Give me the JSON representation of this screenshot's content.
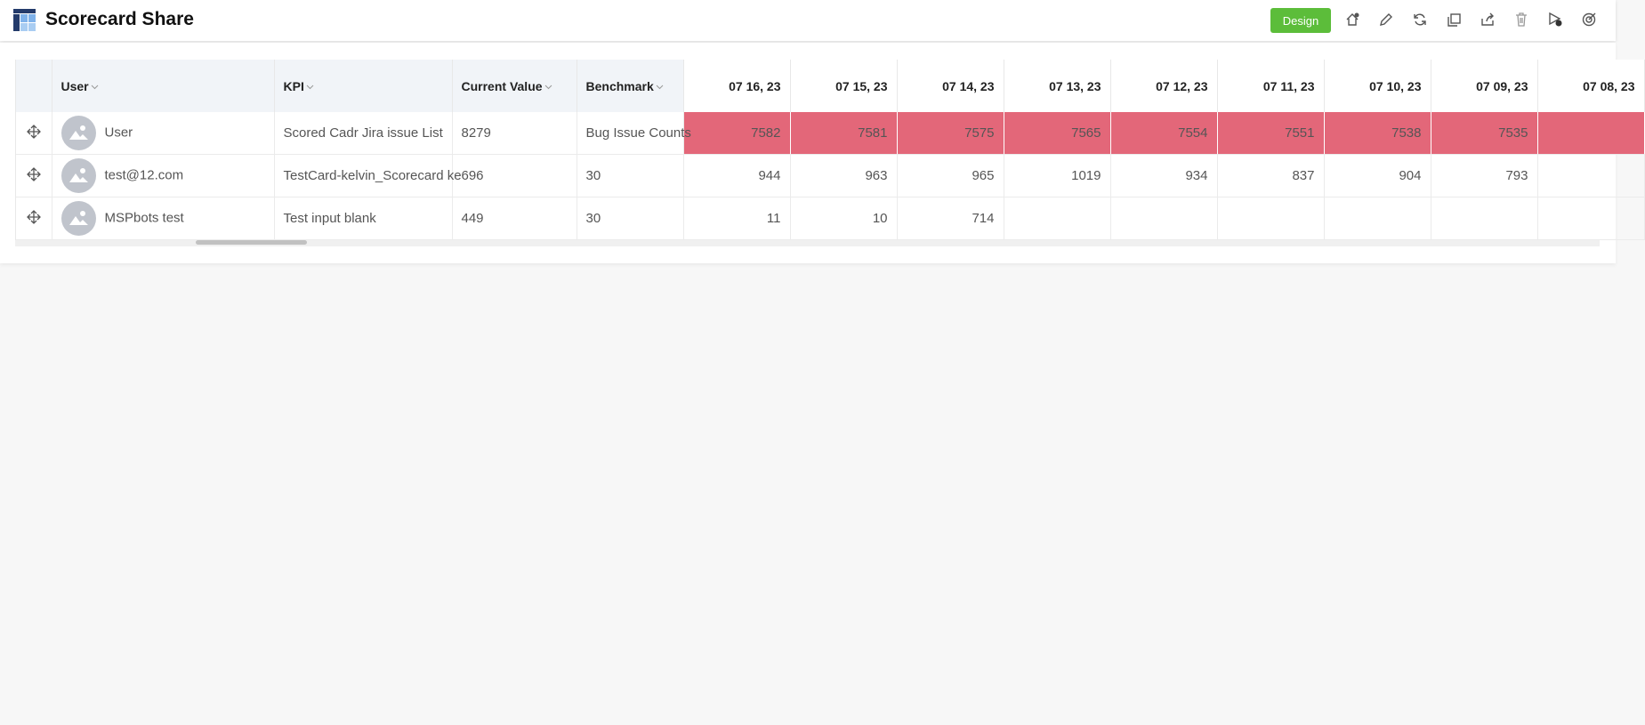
{
  "header": {
    "title": "Scorecard Share",
    "design_button": "Design"
  },
  "table": {
    "columns": [
      "User",
      "KPI",
      "Current Value",
      "Benchmark",
      "07 16, 23",
      "07 15, 23",
      "07 14, 23",
      "07 13, 23",
      "07 12, 23",
      "07 11, 23",
      "07 10, 23",
      "07 09, 23",
      "07 08, 23"
    ],
    "sortable_columns": [
      0,
      1,
      2,
      3
    ],
    "rows": [
      [
        "User",
        "Scored Cadr Jira issue List",
        8279,
        "Bug Issue Counts",
        7582,
        7581,
        7575,
        7565,
        7554,
        7551,
        7538,
        7535,
        null
      ],
      [
        "test@12.com",
        "TestCard-kelvin_Scorecard ke",
        696,
        30,
        944,
        963,
        965,
        1019,
        934,
        837,
        904,
        793,
        null
      ],
      [
        "MSPbots test",
        "Test input blank",
        449,
        30,
        11,
        10,
        714,
        null,
        null,
        null,
        null,
        null,
        null
      ]
    ],
    "highlight_rows": [
      0
    ],
    "highlight_color": "#e36779"
  }
}
